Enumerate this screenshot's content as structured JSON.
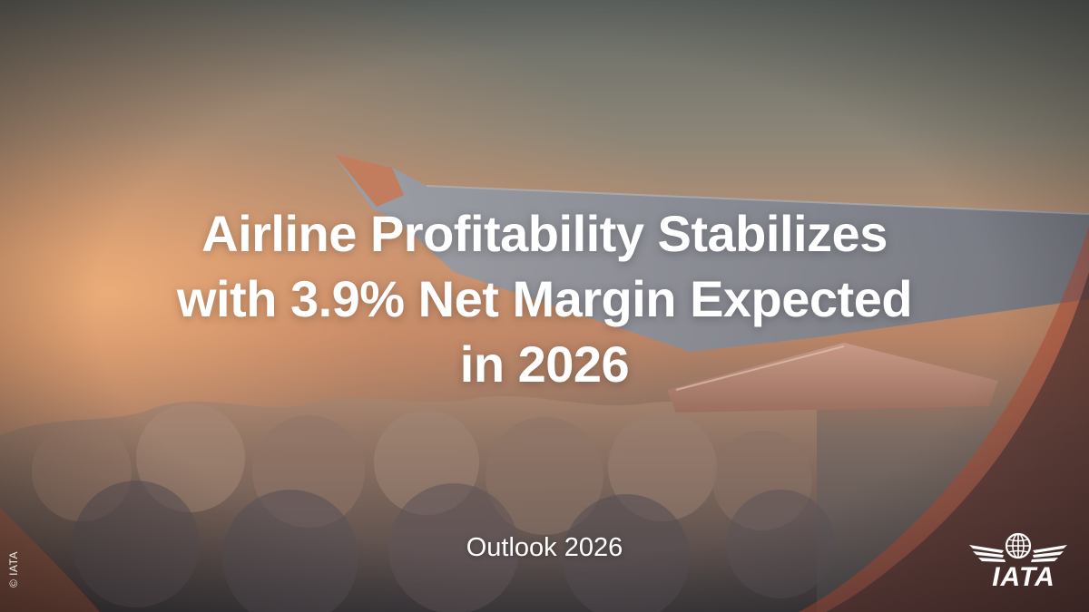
{
  "headline": {
    "line1": "Airline Profitability Stabilizes",
    "line2": "with 3.9% Net Margin Expected",
    "line3": "in 2026"
  },
  "subtitle": "Outlook 2026",
  "copyright": "© IATA",
  "logo": {
    "icon": "iata-globe-wings-logo",
    "text": "IATA"
  },
  "colors": {
    "text": "#ffffff",
    "sky_top": "#6e716b",
    "horizon_glow": "#d08a5e",
    "window_frame": "#c2583b",
    "wing": "#8a8f99"
  }
}
